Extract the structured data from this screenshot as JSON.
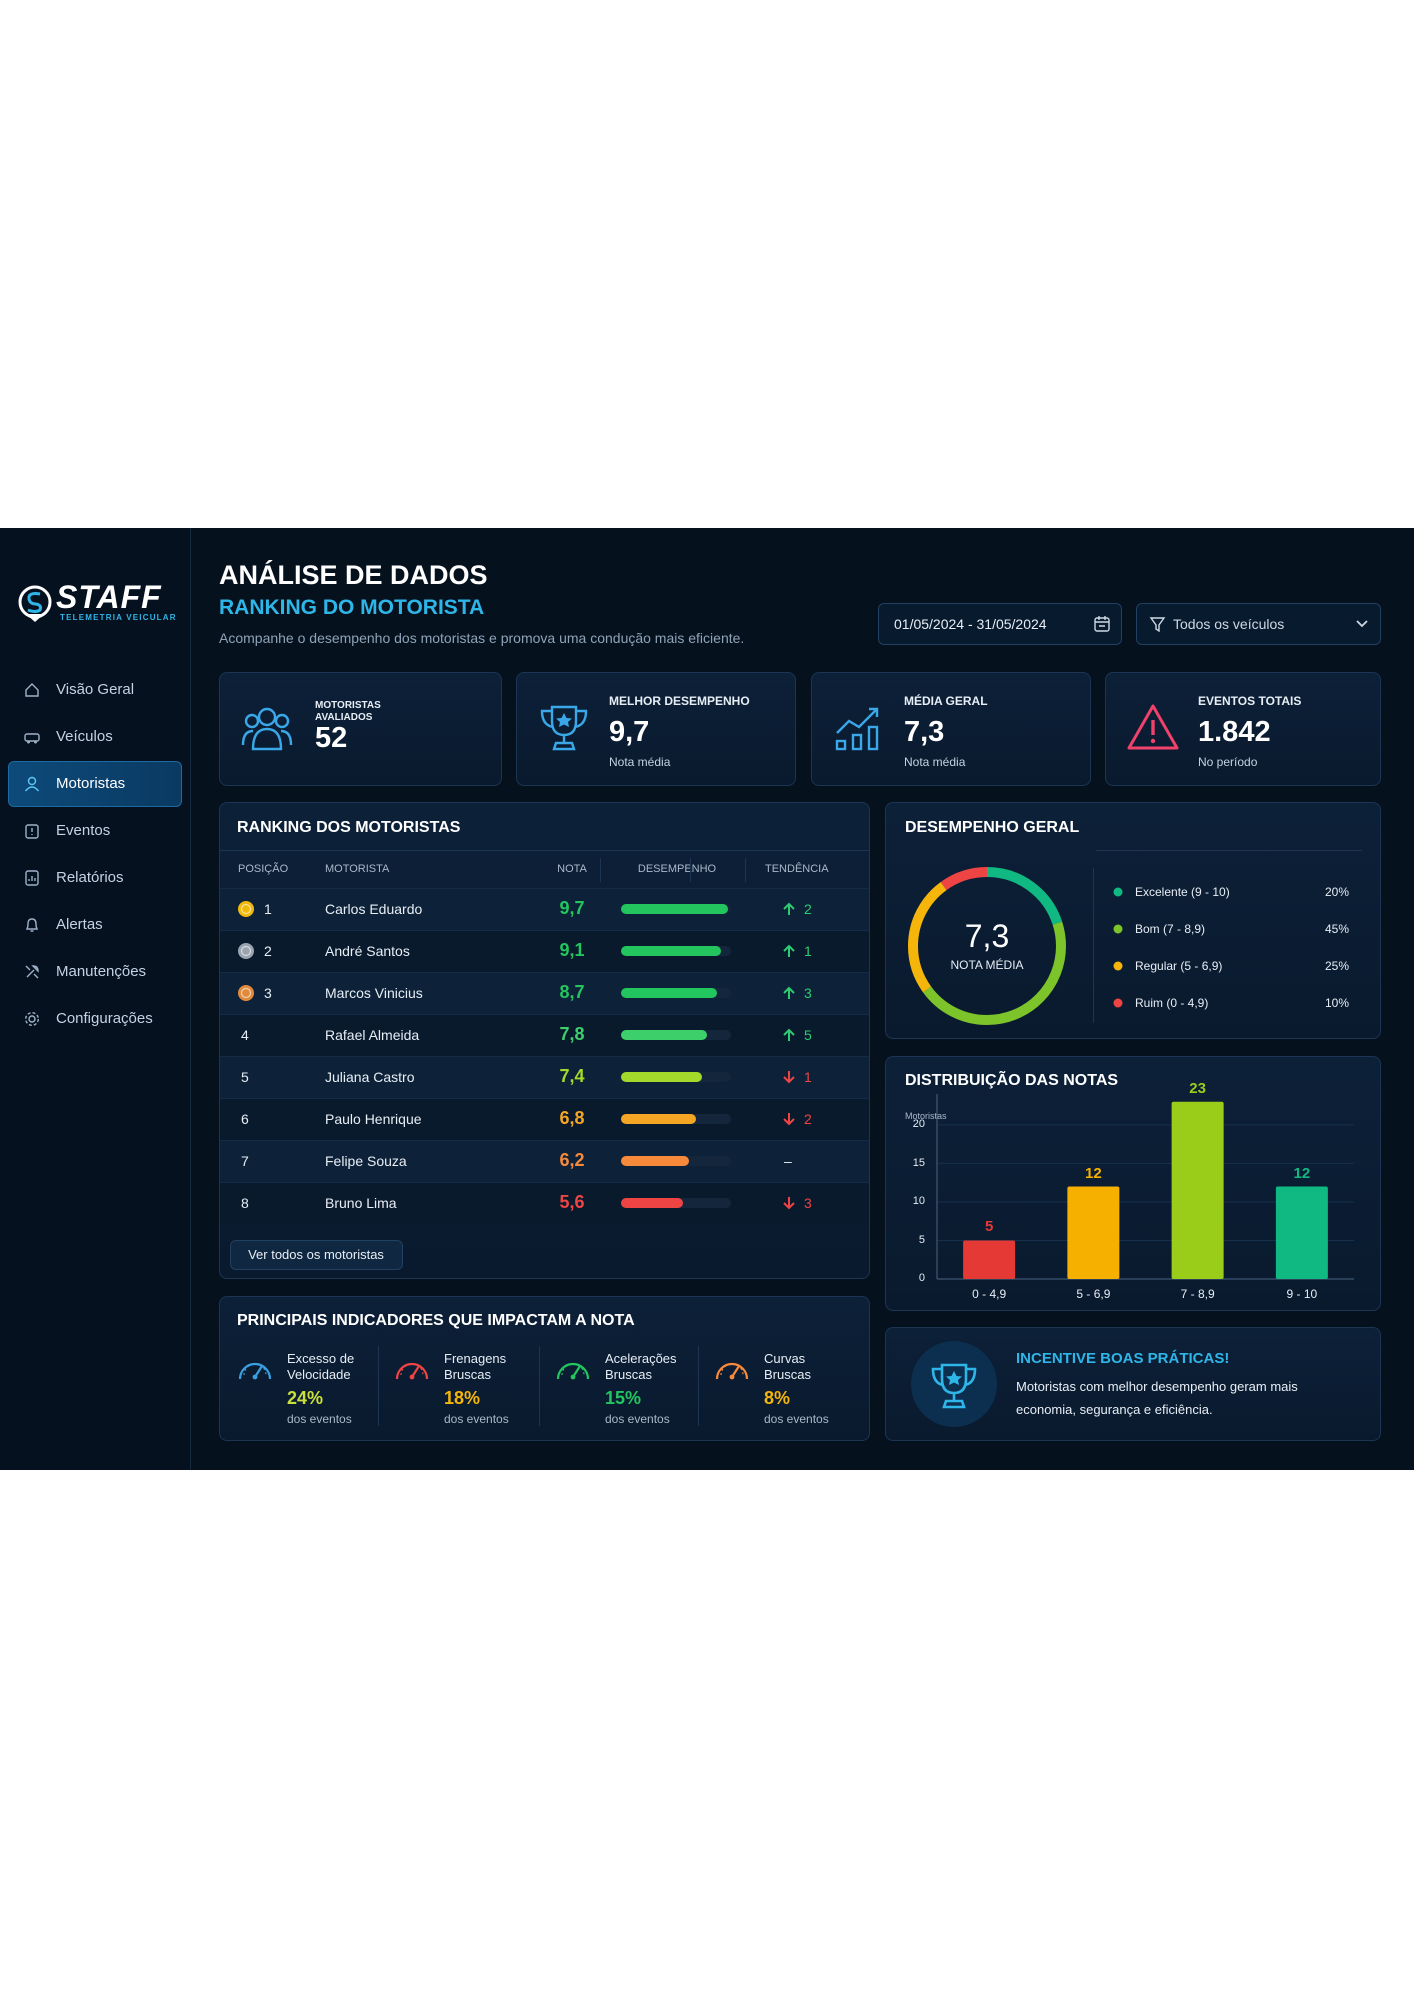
{
  "brand": {
    "name": "STAFF",
    "tagline": "TELEMETRIA VEICULAR"
  },
  "nav": [
    {
      "label": "Visão Geral"
    },
    {
      "label": "Veículos"
    },
    {
      "label": "Motoristas",
      "active": true
    },
    {
      "label": "Eventos"
    },
    {
      "label": "Relatórios"
    },
    {
      "label": "Alertas"
    },
    {
      "label": "Manutenções"
    },
    {
      "label": "Configurações"
    }
  ],
  "header": {
    "title": "ANÁLISE DE DADOS",
    "subtitle": "RANKING DO MOTORISTA",
    "description": "Acompanhe o desempenho dos motoristas e promova uma condução mais eficiente."
  },
  "filters": {
    "date_range": "01/05/2024 - 31/05/2024",
    "vehicles": "Todos os veículos"
  },
  "kpis": [
    {
      "label": "MOTORISTAS AVALIADOS",
      "value": "52"
    },
    {
      "label": "MELHOR DESEMPENHO",
      "value": "9,7",
      "note": "Nota média"
    },
    {
      "label": "MÉDIA GERAL",
      "value": "7,3",
      "note": "Nota média"
    },
    {
      "label": "EVENTOS TOTAIS",
      "value": "1.842",
      "note": "No período"
    }
  ],
  "ranking": {
    "title": "RANKING DOS MOTORISTAS",
    "columns": [
      "POSIÇÃO",
      "MOTORISTA",
      "NOTA",
      "DESEMPENHO",
      "TENDÊNCIA"
    ],
    "xlim": [
      0,
      10
    ],
    "rows": [
      {
        "position": 1,
        "name": "Carlos Eduardo",
        "score": 9.7,
        "score_label": "9,7",
        "color": "#22c55e",
        "medal": "#f0b90b",
        "trend": {
          "direction": "up",
          "value": 2
        }
      },
      {
        "position": 2,
        "name": "André Santos",
        "score": 9.1,
        "score_label": "9,1",
        "color": "#22c55e",
        "medal": "#9aa5b1",
        "trend": {
          "direction": "up",
          "value": 1
        }
      },
      {
        "position": 3,
        "name": "Marcos Vinicius",
        "score": 8.7,
        "score_label": "8,7",
        "color": "#22c55e",
        "medal": "#e08a3c",
        "trend": {
          "direction": "up",
          "value": 3
        }
      },
      {
        "position": 4,
        "name": "Rafael Almeida",
        "score": 7.8,
        "score_label": "7,8",
        "color": "#3ccf6a",
        "trend": {
          "direction": "up",
          "value": 5
        }
      },
      {
        "position": 5,
        "name": "Juliana Castro",
        "score": 7.4,
        "score_label": "7,4",
        "color": "#a3d92a",
        "trend": {
          "direction": "down",
          "value": 1
        }
      },
      {
        "position": 6,
        "name": "Paulo Henrique",
        "score": 6.8,
        "score_label": "6,8",
        "color": "#f5a524",
        "trend": {
          "direction": "down",
          "value": 2
        }
      },
      {
        "position": 7,
        "name": "Felipe Souza",
        "score": 6.2,
        "score_label": "6,2",
        "color": "#f78a3a",
        "trend": {
          "value": "–"
        }
      },
      {
        "position": 8,
        "name": "Bruno Lima",
        "score": 5.6,
        "score_label": "5,6",
        "color": "#ef4444",
        "trend": {
          "direction": "down",
          "value": 3
        }
      }
    ],
    "button": "Ver todos os motoristas"
  },
  "indicators": {
    "title": "PRINCIPAIS INDICADORES QUE IMPACTAM A NOTA",
    "items": [
      {
        "label": "Excesso de Velocidade",
        "value": "24%",
        "note": "dos eventos",
        "color": "#c9e03a",
        "icon_color": "#3aa0e0"
      },
      {
        "label": "Frenagens Bruscas",
        "value": "18%",
        "note": "dos eventos",
        "color": "#f5b50a",
        "icon_color": "#ef4444"
      },
      {
        "label": "Acelerações Bruscas",
        "value": "15%",
        "note": "dos eventos",
        "color": "#22c55e",
        "icon_color": "#22c55e"
      },
      {
        "label": "Curvas Bruscas",
        "value": "8%",
        "note": "dos eventos",
        "color": "#f5b50a",
        "icon_color": "#f78a3a"
      }
    ]
  },
  "incentive": {
    "title": "INCENTIVE BOAS PRÁTICAS!",
    "text": "Motoristas com melhor desempenho geram mais economia, segurança e eficiência."
  },
  "chart_data": [
    {
      "type": "pie",
      "title": "DESEMPENHO GERAL",
      "categories": [
        "Excelente (9 - 10)",
        "Bom (7 - 8,9)",
        "Regular (5 - 6,9)",
        "Ruim (0 - 4,9)"
      ],
      "values": [
        20,
        45,
        25,
        10
      ],
      "value_labels": [
        "20%",
        "45%",
        "25%",
        "10%"
      ],
      "colors": [
        "#10b981",
        "#7cc42a",
        "#f5b50a",
        "#ef4444"
      ],
      "center_value": "7,3",
      "center_label": "NOTA MÉDIA"
    },
    {
      "type": "bar",
      "title": "DISTRIBUIÇÃO DAS NOTAS",
      "y_label": "Motoristas",
      "categories": [
        "0 - 4,9",
        "5 - 6,9",
        "7 - 8,9",
        "9 - 10"
      ],
      "values": [
        5,
        12,
        23,
        12
      ],
      "colors": [
        "#e53935",
        "#f5b000",
        "#9acd1a",
        "#10b981"
      ],
      "ylim": [
        0,
        24
      ],
      "yticks": [
        0,
        5,
        10,
        15,
        20
      ]
    }
  ]
}
